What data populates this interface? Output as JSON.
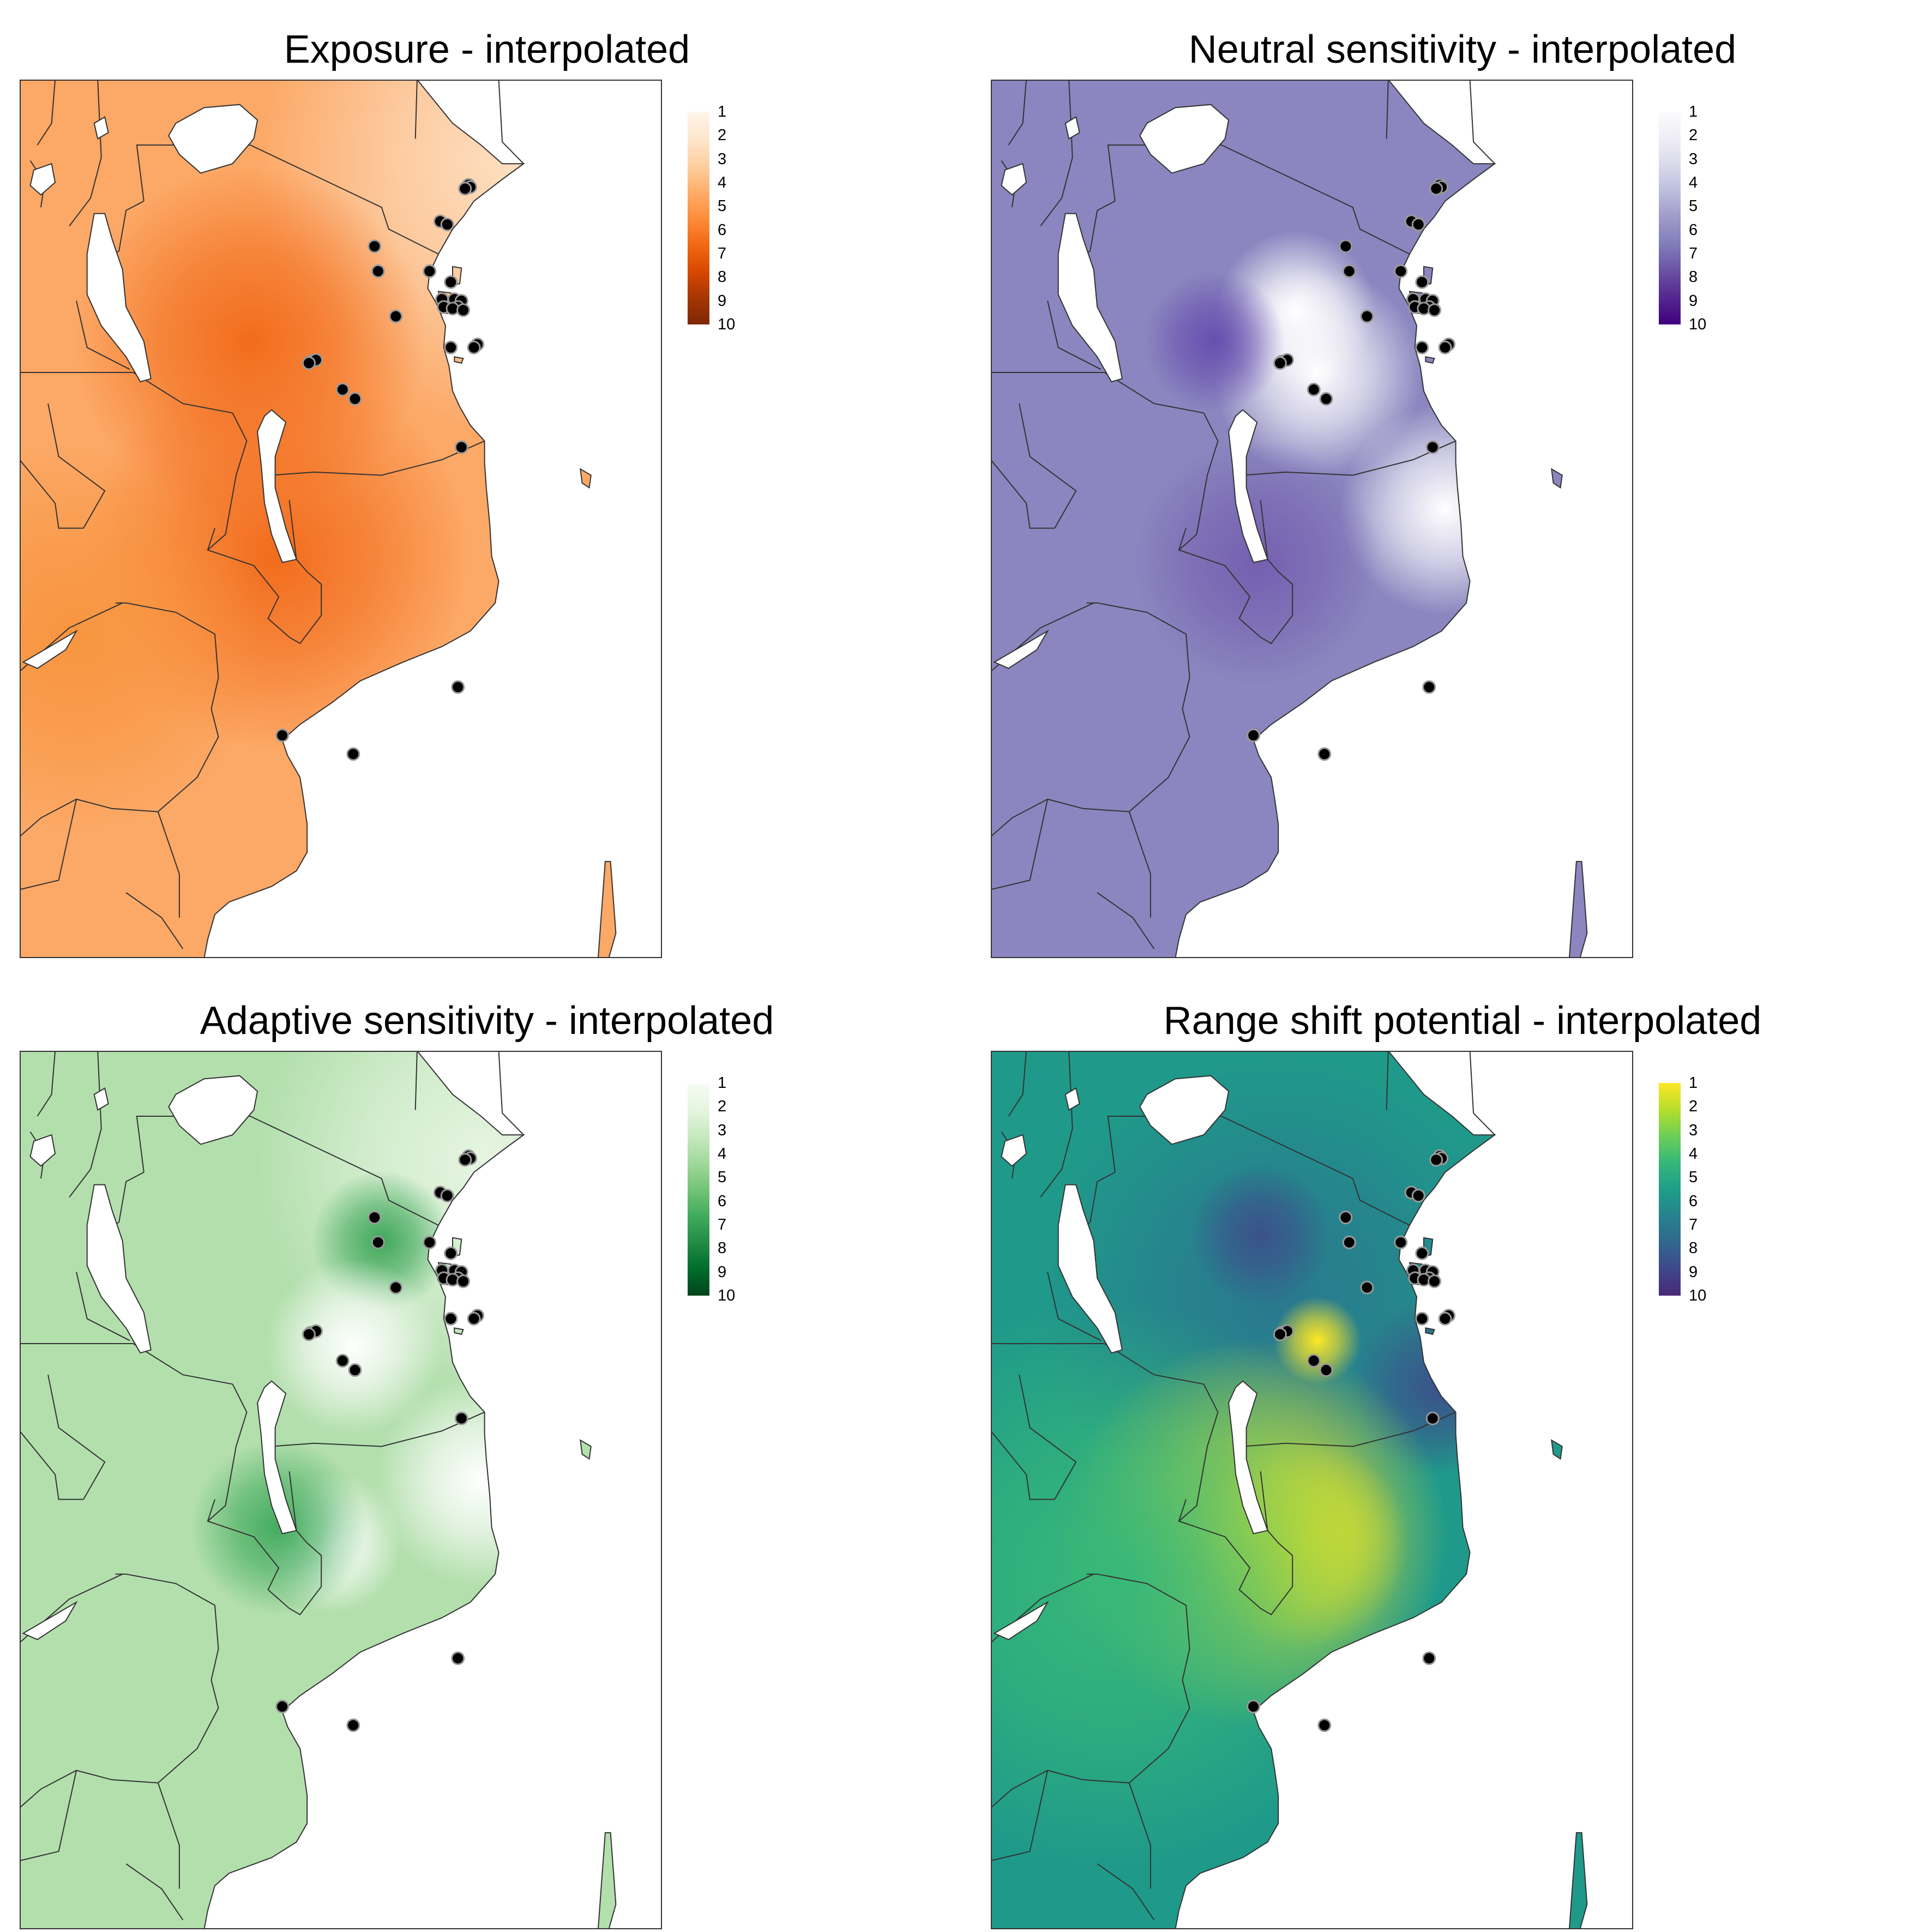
{
  "figure": {
    "panels": [
      {
        "id": "exposure",
        "title": "Exposure - interpolated",
        "legend": {
          "ticks": [
            "1",
            "2",
            "3",
            "4",
            "5",
            "6",
            "7",
            "8",
            "9",
            "10"
          ],
          "colors": [
            "#fff5eb",
            "#fee6ce",
            "#fdd0a2",
            "#fdae6b",
            "#fd8d3c",
            "#f16913",
            "#d94801",
            "#a63603",
            "#7f2704"
          ]
        },
        "land_color": "#fca866",
        "hotspots": [
          {
            "color": "#fde3c8",
            "lon": 42.0,
            "lat": -1.5,
            "r": 0.32
          },
          {
            "color": "#f26c1c",
            "lon": 33.9,
            "lat": -7.3,
            "r": 0.2
          },
          {
            "color": "#f26c1c",
            "lon": 34.6,
            "lat": -14.2,
            "r": 0.22
          },
          {
            "color": "#f8953f",
            "lon": 29.0,
            "lat": -16.8,
            "r": 0.22
          }
        ]
      },
      {
        "id": "neutral-sensitivity",
        "title": "Neutral sensitivity - interpolated",
        "legend": {
          "ticks": [
            "1",
            "2",
            "3",
            "4",
            "5",
            "6",
            "7",
            "8",
            "9",
            "10"
          ],
          "colors": [
            "#fcfbfd",
            "#efedf5",
            "#dadaeb",
            "#bcbddc",
            "#9e9ac8",
            "#807dba",
            "#6a51a3",
            "#54278f",
            "#3f007d"
          ]
        },
        "land_color": "#8b86bf",
        "hotspots": [
          {
            "color": "#ffffff",
            "lon": 36.0,
            "lat": -6.3,
            "r": 0.09
          },
          {
            "color": "#ffffff",
            "lon": 36.6,
            "lat": -8.3,
            "r": 0.12
          },
          {
            "color": "#ffffff",
            "lon": 40.2,
            "lat": -12.7,
            "r": 0.12
          },
          {
            "color": "#6850b0",
            "lon": 33.7,
            "lat": -7.3,
            "r": 0.08
          },
          {
            "color": "#7560b0",
            "lon": 34.9,
            "lat": -14.4,
            "r": 0.14
          }
        ]
      },
      {
        "id": "adaptive-sensitivity",
        "title": "Adaptive sensitivity - interpolated",
        "legend": {
          "ticks": [
            "1",
            "2",
            "3",
            "4",
            "5",
            "6",
            "7",
            "8",
            "9",
            "10"
          ],
          "colors": [
            "#f7fcf5",
            "#e5f5e0",
            "#c7e9c0",
            "#a1d99b",
            "#74c476",
            "#41ab5d",
            "#238b45",
            "#006d2c",
            "#00441b"
          ]
        },
        "land_color": "#b3dfad",
        "hotspots": [
          {
            "color": "#e6f5e2",
            "lon": 40.5,
            "lat": -2.5,
            "r": 0.26
          },
          {
            "color": "#3fa75a",
            "lon": 37.6,
            "lat": -5.0,
            "r": 0.08
          },
          {
            "color": "#ffffff",
            "lon": 36.8,
            "lat": -8.4,
            "r": 0.1
          },
          {
            "color": "#ffffff",
            "lon": 40.4,
            "lat": -12.7,
            "r": 0.12
          },
          {
            "color": "#ffffff",
            "lon": 36.2,
            "lat": -14.7,
            "r": 0.08
          },
          {
            "color": "#42ab5e",
            "lon": 34.7,
            "lat": -14.2,
            "r": 0.1
          }
        ]
      },
      {
        "id": "range-shift-potential",
        "title": "Range shift potential - interpolated",
        "legend": {
          "ticks": [
            "1",
            "2",
            "3",
            "4",
            "5",
            "6",
            "7",
            "8",
            "9",
            "10"
          ],
          "colors": [
            "#fde725",
            "#b5de2b",
            "#6ece58",
            "#35b779",
            "#1f9e89",
            "#26828e",
            "#31688e",
            "#3e4989",
            "#482878"
          ]
        },
        "land_color": "#1f9a8a",
        "hotspots": [
          {
            "color": "#2a788e",
            "lon": 35.5,
            "lat": -6.8,
            "r": 0.28
          },
          {
            "color": "#3b528b",
            "lon": 40.0,
            "lat": -9.7,
            "r": 0.1
          },
          {
            "color": "#3b528b",
            "lon": 35.0,
            "lat": -4.8,
            "r": 0.08
          },
          {
            "color": "#fde725",
            "lon": 36.6,
            "lat": -8.2,
            "r": 0.05
          },
          {
            "color": "#fde725",
            "lon": 34.8,
            "lat": -14.4,
            "r": 0.22
          },
          {
            "color": "#f3e51e",
            "lon": 36.2,
            "lat": -14.7,
            "r": 0.12
          },
          {
            "color": "#37b878",
            "lon": 30.8,
            "lat": -16.0,
            "r": 0.32
          }
        ]
      }
    ],
    "sites": [
      {
        "lon": 40.05,
        "lat": -2.28
      },
      {
        "lon": 40.1,
        "lat": -2.35
      },
      {
        "lon": 39.95,
        "lat": -2.4
      },
      {
        "lon": 39.25,
        "lat": -3.45
      },
      {
        "lon": 39.45,
        "lat": -3.55
      },
      {
        "lon": 37.4,
        "lat": -4.25
      },
      {
        "lon": 37.5,
        "lat": -5.05
      },
      {
        "lon": 38.95,
        "lat": -5.05
      },
      {
        "lon": 39.55,
        "lat": -5.4
      },
      {
        "lon": 39.3,
        "lat": -5.95
      },
      {
        "lon": 39.65,
        "lat": -5.95
      },
      {
        "lon": 39.85,
        "lat": -6.0
      },
      {
        "lon": 39.75,
        "lat": -6.2
      },
      {
        "lon": 39.35,
        "lat": -6.2
      },
      {
        "lon": 39.6,
        "lat": -6.25
      },
      {
        "lon": 39.9,
        "lat": -6.3
      },
      {
        "lon": 38.0,
        "lat": -6.5
      },
      {
        "lon": 40.3,
        "lat": -7.4
      },
      {
        "lon": 40.2,
        "lat": -7.5
      },
      {
        "lon": 39.55,
        "lat": -7.5
      },
      {
        "lon": 35.6,
        "lat": -7.95
      },
      {
        "lon": 35.75,
        "lat": -7.9
      },
      {
        "lon": 35.55,
        "lat": -8.0
      },
      {
        "lon": 36.5,
        "lat": -8.85
      },
      {
        "lon": 36.85,
        "lat": -9.15
      },
      {
        "lon": 39.85,
        "lat": -10.7
      },
      {
        "lon": 39.75,
        "lat": -18.4
      },
      {
        "lon": 34.8,
        "lat": -19.95
      },
      {
        "lon": 36.8,
        "lat": -20.55
      }
    ]
  }
}
